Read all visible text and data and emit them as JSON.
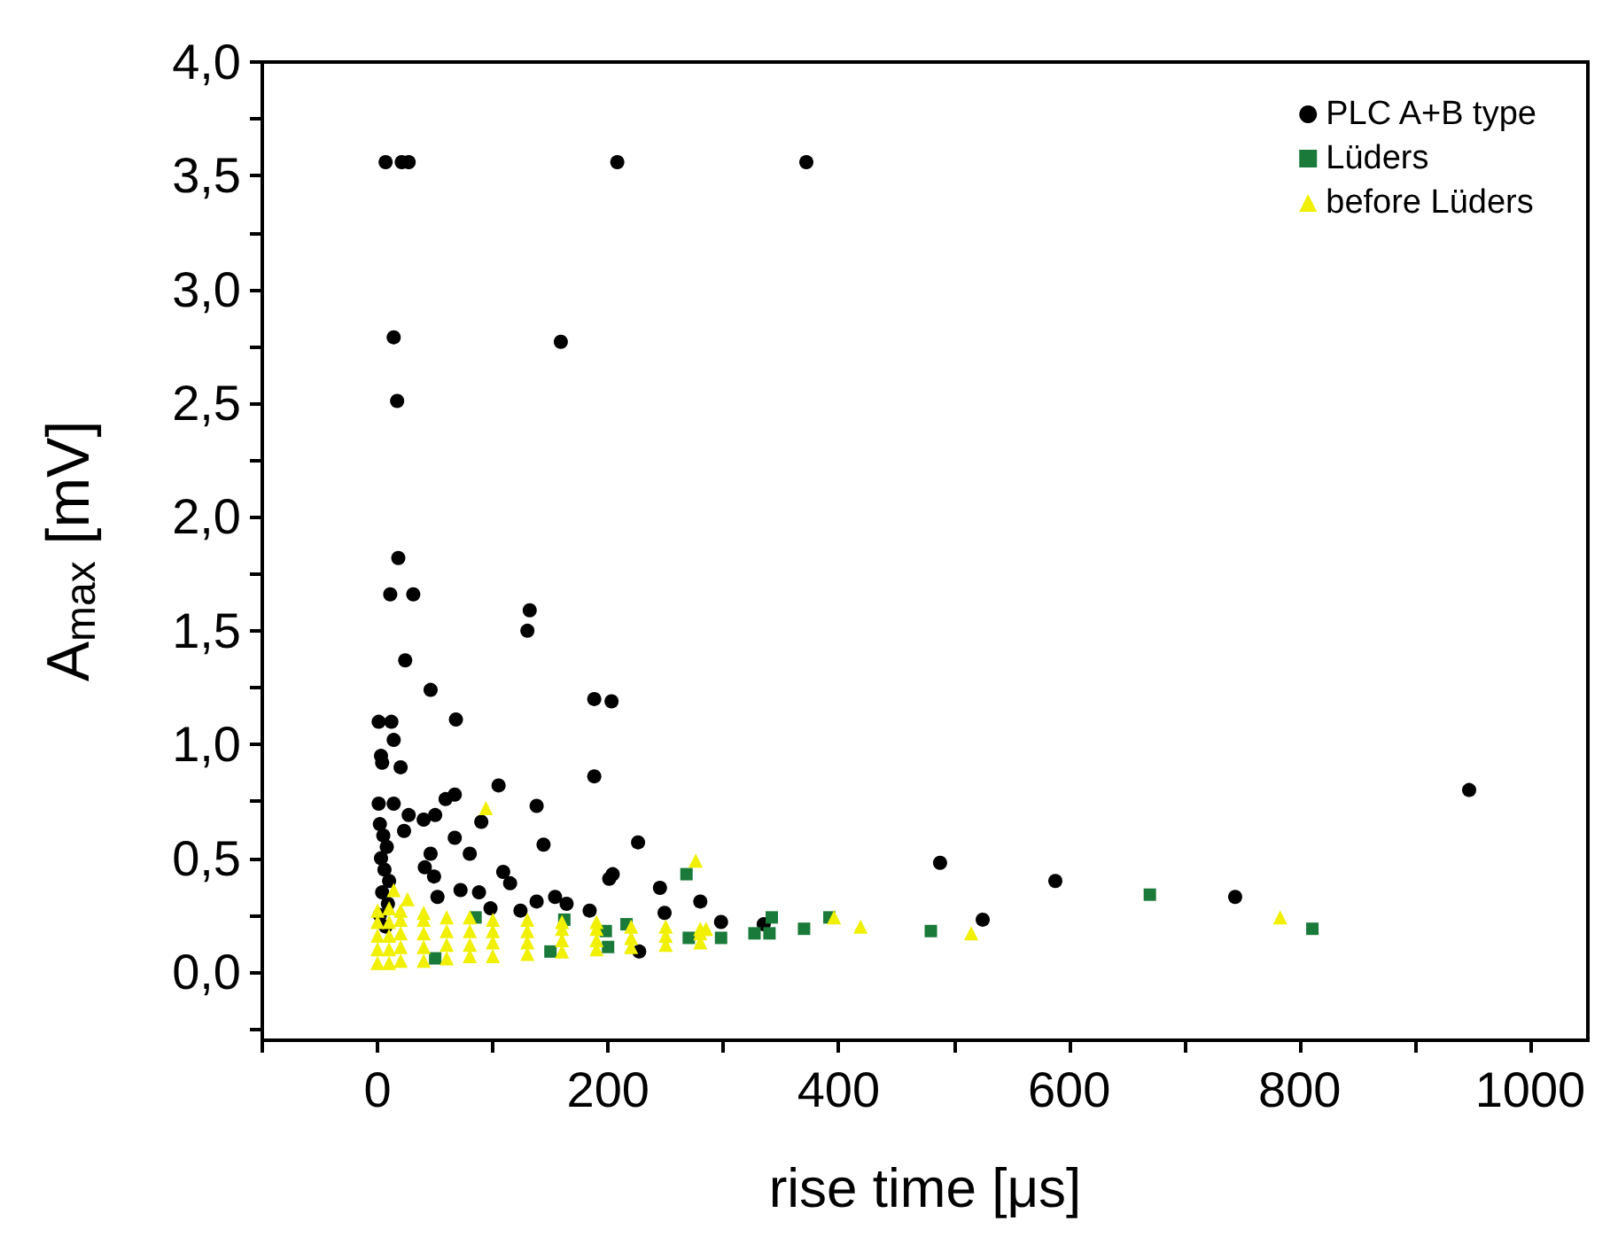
{
  "chart_data": {
    "type": "scatter",
    "xlabel": "rise time [μs]",
    "ylabel": "A$_{max}$ [mV]",
    "xlim": [
      -100,
      1050
    ],
    "ylim": [
      -0.3,
      4.0
    ],
    "xticks": [
      {
        "value": -100,
        "label": null
      },
      0,
      {
        "value": 100,
        "label": null
      },
      200,
      {
        "value": 300,
        "label": null
      },
      400,
      {
        "value": 500,
        "label": null
      },
      600,
      {
        "value": 700,
        "label": null
      },
      800,
      {
        "value": 900,
        "label": null
      },
      1000
    ],
    "yticks": [
      {
        "value": -0.25,
        "label": null
      },
      {
        "value": 0,
        "label": "0,0"
      },
      {
        "value": 0.25,
        "label": null
      },
      {
        "value": 0.5,
        "label": "0,5"
      },
      {
        "value": 0.75,
        "label": null
      },
      {
        "value": 1,
        "label": "1,0"
      },
      {
        "value": 1.25,
        "label": null
      },
      {
        "value": 1.5,
        "label": "1,5"
      },
      {
        "value": 1.75,
        "label": null
      },
      {
        "value": 2,
        "label": "2,0"
      },
      {
        "value": 2.25,
        "label": null
      },
      {
        "value": 2.5,
        "label": "2,5"
      },
      {
        "value": 2.75,
        "label": null
      },
      {
        "value": 3,
        "label": "3,0"
      },
      {
        "value": 3.25,
        "label": null
      },
      {
        "value": 3.5,
        "label": "3,5"
      },
      {
        "value": 3.75,
        "label": null
      },
      {
        "value": 4,
        "label": "4,0"
      }
    ],
    "grid": false,
    "legend": "top right",
    "series": [
      {
        "name": "PLC A+B type",
        "color": "#000000",
        "marker": "circle",
        "x": [
          7,
          21,
          27,
          208,
          372,
          14,
          159,
          17,
          18,
          11,
          31,
          132,
          130,
          24,
          46,
          188,
          203,
          1,
          12,
          68,
          14,
          3,
          4,
          20,
          188,
          105,
          59,
          67,
          1,
          14,
          138,
          27,
          40,
          50,
          90,
          23,
          67,
          144,
          226,
          46,
          80,
          41,
          109,
          115,
          49,
          201,
          204,
          245,
          72,
          52,
          88,
          154,
          164,
          138,
          280,
          98,
          124,
          184,
          249,
          298,
          335,
          488,
          227,
          525,
          588,
          744,
          947,
          2,
          5,
          8,
          3,
          6,
          10,
          4,
          9,
          2,
          7
        ],
        "values": [
          3.56,
          3.56,
          3.56,
          3.56,
          3.56,
          2.79,
          2.77,
          2.51,
          1.82,
          1.66,
          1.66,
          1.59,
          1.5,
          1.37,
          1.24,
          1.2,
          1.19,
          1.1,
          1.1,
          1.11,
          1.02,
          0.95,
          0.92,
          0.9,
          0.86,
          0.82,
          0.76,
          0.78,
          0.74,
          0.74,
          0.73,
          0.69,
          0.67,
          0.69,
          0.66,
          0.62,
          0.59,
          0.56,
          0.57,
          0.52,
          0.52,
          0.46,
          0.44,
          0.39,
          0.42,
          0.41,
          0.43,
          0.37,
          0.36,
          0.33,
          0.35,
          0.33,
          0.3,
          0.31,
          0.31,
          0.28,
          0.27,
          0.27,
          0.26,
          0.22,
          0.21,
          0.48,
          0.09,
          0.23,
          0.4,
          0.33,
          0.8,
          0.65,
          0.6,
          0.55,
          0.5,
          0.45,
          0.4,
          0.35,
          0.3,
          0.25,
          0.2
        ]
      },
      {
        "name": "Lüders",
        "color": "#1a7a3a",
        "marker": "square",
        "x": [
          268,
          342,
          327,
          340,
          370,
          392,
          480,
          270,
          298,
          85,
          162,
          198,
          216,
          670,
          811,
          50,
          150,
          200
        ],
        "values": [
          0.43,
          0.24,
          0.17,
          0.17,
          0.19,
          0.24,
          0.18,
          0.15,
          0.15,
          0.24,
          0.23,
          0.18,
          0.21,
          0.34,
          0.19,
          0.06,
          0.09,
          0.11
        ]
      },
      {
        "name": "before Lüders",
        "color": "#f0f000",
        "marker": "triangle",
        "x": [
          94,
          14,
          26,
          276,
          419,
          396,
          285,
          515,
          783,
          0,
          0,
          0,
          0,
          0,
          10,
          10,
          10,
          10,
          10,
          20,
          20,
          20,
          20,
          20,
          40,
          40,
          40,
          40,
          40,
          60,
          60,
          60,
          60,
          80,
          80,
          80,
          80,
          100,
          100,
          100,
          100,
          130,
          130,
          130,
          130,
          160,
          160,
          160,
          160,
          190,
          190,
          190,
          190,
          220,
          220,
          220,
          250,
          250,
          250,
          280,
          280,
          280
        ],
        "values": [
          0.72,
          0.36,
          0.32,
          0.49,
          0.2,
          0.24,
          0.19,
          0.17,
          0.24,
          0.04,
          0.1,
          0.16,
          0.22,
          0.27,
          0.04,
          0.1,
          0.16,
          0.22,
          0.28,
          0.05,
          0.11,
          0.17,
          0.23,
          0.27,
          0.05,
          0.11,
          0.17,
          0.23,
          0.26,
          0.06,
          0.12,
          0.18,
          0.24,
          0.07,
          0.12,
          0.18,
          0.24,
          0.07,
          0.13,
          0.18,
          0.23,
          0.08,
          0.13,
          0.18,
          0.23,
          0.09,
          0.14,
          0.19,
          0.22,
          0.1,
          0.14,
          0.19,
          0.22,
          0.11,
          0.15,
          0.2,
          0.12,
          0.16,
          0.2,
          0.13,
          0.17,
          0.19
        ]
      }
    ]
  }
}
